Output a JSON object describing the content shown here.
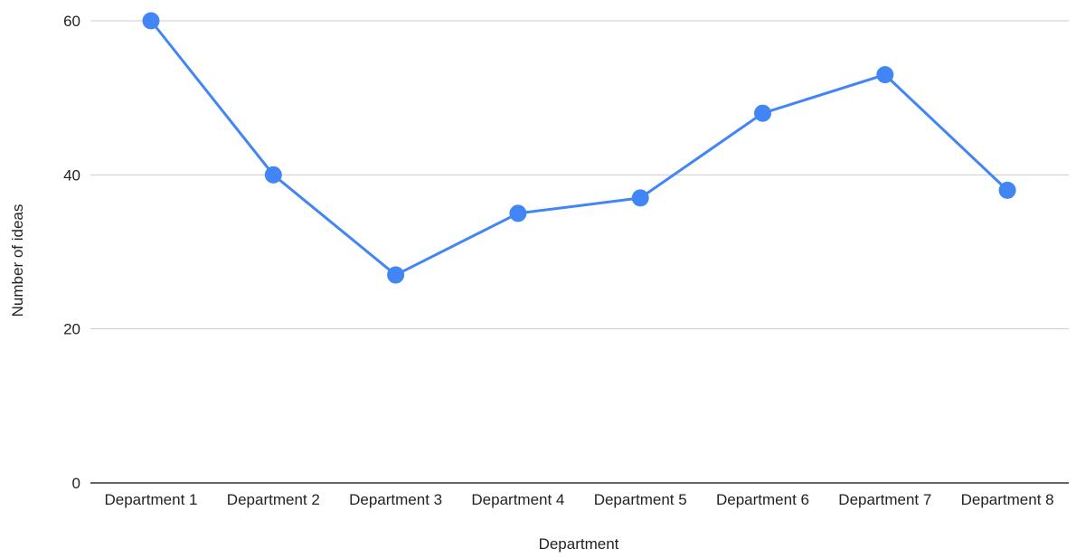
{
  "chart_data": {
    "type": "line",
    "title": "",
    "xlabel": "Department",
    "ylabel": "Number of ideas",
    "categories": [
      "Department 1",
      "Department 2",
      "Department 3",
      "Department 4",
      "Department 5",
      "Department 6",
      "Department 7",
      "Department 8"
    ],
    "series": [
      {
        "values": [
          60,
          40,
          27,
          35,
          37,
          48,
          53,
          38
        ],
        "color": "#4285f4"
      }
    ],
    "ylim": [
      0,
      60
    ],
    "yticks": [
      0,
      20,
      40,
      60
    ],
    "grid": true,
    "legend": "none",
    "colors": {
      "line": "#4285f4",
      "grid": "#cccccc",
      "baseline": "#333333"
    }
  }
}
